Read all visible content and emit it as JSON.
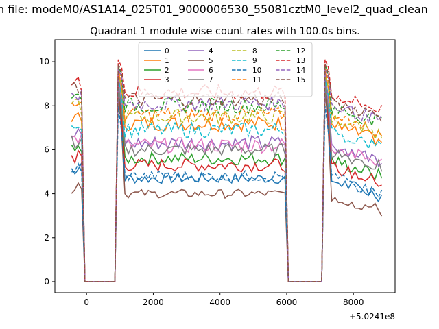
{
  "figure": {
    "suptitle": "n file: modeM0/AS1A14_025T01_9000006530_55081cztM0_level2_quad_clean"
  },
  "chart_data": {
    "type": "line",
    "title": "Quadrant 1 module wise count rates with 100.0s bins.",
    "xlabel": "",
    "ylabel": "",
    "offset_text": "+5.0241e8",
    "xlim": [
      -950,
      9250
    ],
    "ylim": [
      -0.5,
      11.0
    ],
    "xticks": [
      0,
      2000,
      4000,
      6000,
      8000
    ],
    "yticks": [
      0,
      2,
      4,
      6,
      8,
      10
    ],
    "grid": false,
    "legend": {
      "placement": "top-center",
      "columns": 4
    },
    "gaps": [
      [
        -50,
        850
      ],
      [
        6050,
        7050
      ]
    ],
    "segments": [
      [
        -450,
        -150
      ],
      [
        -50,
        850
      ],
      [
        950,
        5950
      ],
      [
        6050,
        7050
      ],
      [
        7150,
        8850
      ]
    ],
    "series": [
      {
        "name": "0",
        "color": "#1f77b4",
        "dash": "solid",
        "level": 4.7,
        "peak": 9.4,
        "amp": 0.25
      },
      {
        "name": "1",
        "color": "#ff7f0e",
        "dash": "solid",
        "level": 7.2,
        "peak": 9.6,
        "amp": 0.35
      },
      {
        "name": "2",
        "color": "#2ca02c",
        "dash": "solid",
        "level": 5.6,
        "peak": 9.3,
        "amp": 0.3
      },
      {
        "name": "3",
        "color": "#d62728",
        "dash": "solid",
        "level": 5.3,
        "peak": 8.6,
        "amp": 0.3
      },
      {
        "name": "4",
        "color": "#9467bd",
        "dash": "solid",
        "level": 6.3,
        "peak": 9.5,
        "amp": 0.35
      },
      {
        "name": "5",
        "color": "#8c564b",
        "dash": "solid",
        "level": 4.0,
        "peak": 8.8,
        "amp": 0.2
      },
      {
        "name": "6",
        "color": "#e377c2",
        "dash": "solid",
        "level": 6.2,
        "peak": 9.1,
        "amp": 0.35
      },
      {
        "name": "7",
        "color": "#7f7f7f",
        "dash": "solid",
        "level": 6.0,
        "peak": 9.0,
        "amp": 0.3
      },
      {
        "name": "8",
        "color": "#bcbd22",
        "dash": "dashed",
        "level": 7.5,
        "peak": 9.4,
        "amp": 0.35
      },
      {
        "name": "9",
        "color": "#17becf",
        "dash": "dashed",
        "level": 6.9,
        "peak": 9.2,
        "amp": 0.35
      },
      {
        "name": "10",
        "color": "#1f77b4",
        "dash": "dashed",
        "level": 4.8,
        "peak": 8.0,
        "amp": 0.25
      },
      {
        "name": "11",
        "color": "#ff7f0e",
        "dash": "dashed",
        "level": 7.6,
        "peak": 9.8,
        "amp": 0.35
      },
      {
        "name": "12",
        "color": "#2ca02c",
        "dash": "dashed",
        "level": 8.0,
        "peak": 9.9,
        "amp": 0.35
      },
      {
        "name": "13",
        "color": "#d62728",
        "dash": "dashed",
        "level": 8.6,
        "peak": 10.1,
        "amp": 0.35
      },
      {
        "name": "14",
        "color": "#9467bd",
        "dash": "dashed",
        "level": 8.1,
        "peak": 9.7,
        "amp": 0.35
      },
      {
        "name": "15",
        "color": "#8c564b",
        "dash": "dashed",
        "level": 8.3,
        "peak": 9.9,
        "amp": 0.35
      }
    ]
  }
}
